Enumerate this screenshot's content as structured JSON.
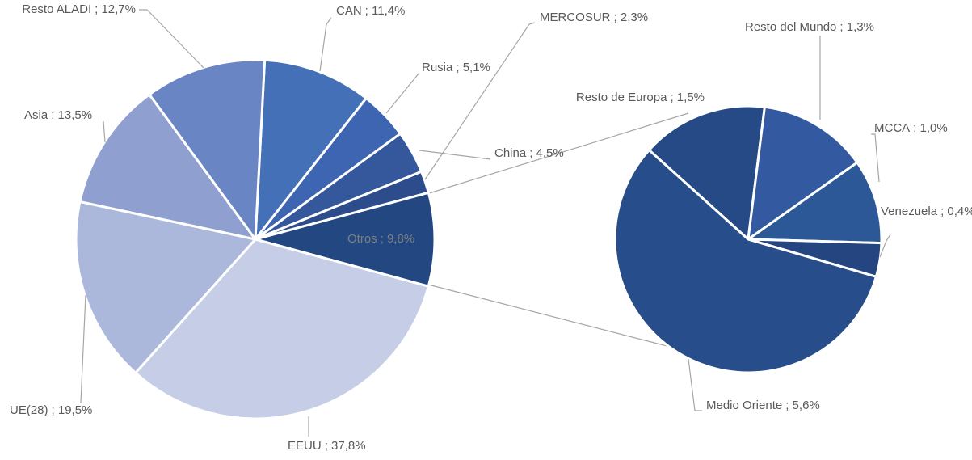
{
  "chart_data": [
    {
      "type": "pie",
      "categories": [
        "CAN",
        "Rusia",
        "China",
        "MERCOSUR",
        "Otros",
        "EEUU",
        "UE(28)",
        "Asia",
        "Resto ALADI"
      ],
      "values": [
        11.4,
        5.1,
        4.5,
        2.3,
        9.8,
        37.8,
        19.5,
        13.5,
        12.7
      ],
      "value_labels": [
        "; 11,4%",
        "; 5,1%",
        "; 4,5%",
        "; 2,3%",
        "; 9,8%",
        "; 37,8%",
        "; 19,5%",
        "; 13,5%",
        "; 12,7%"
      ],
      "colors": [
        "#4470b8",
        "#3d65b2",
        "#35589d",
        "#2d4c8c",
        "#234781",
        "#c6cee7",
        "#abb7db",
        "#8fa0d0",
        "#6985c3"
      ]
    },
    {
      "type": "pie",
      "categories": [
        "Resto de Europa",
        "Resto del Mundo",
        "MCCA",
        "Venezuela",
        "Medio Oriente"
      ],
      "values": [
        1.5,
        1.3,
        1.0,
        0.4,
        5.6
      ],
      "value_labels": [
        "; 1,5%",
        "; 1,3%",
        "; 1,0%",
        "; 0,4%",
        "; 5,6%"
      ],
      "colors": [
        "#254a85",
        "#3359a0",
        "#2c5897",
        "#244580",
        "#274d8a"
      ]
    }
  ]
}
